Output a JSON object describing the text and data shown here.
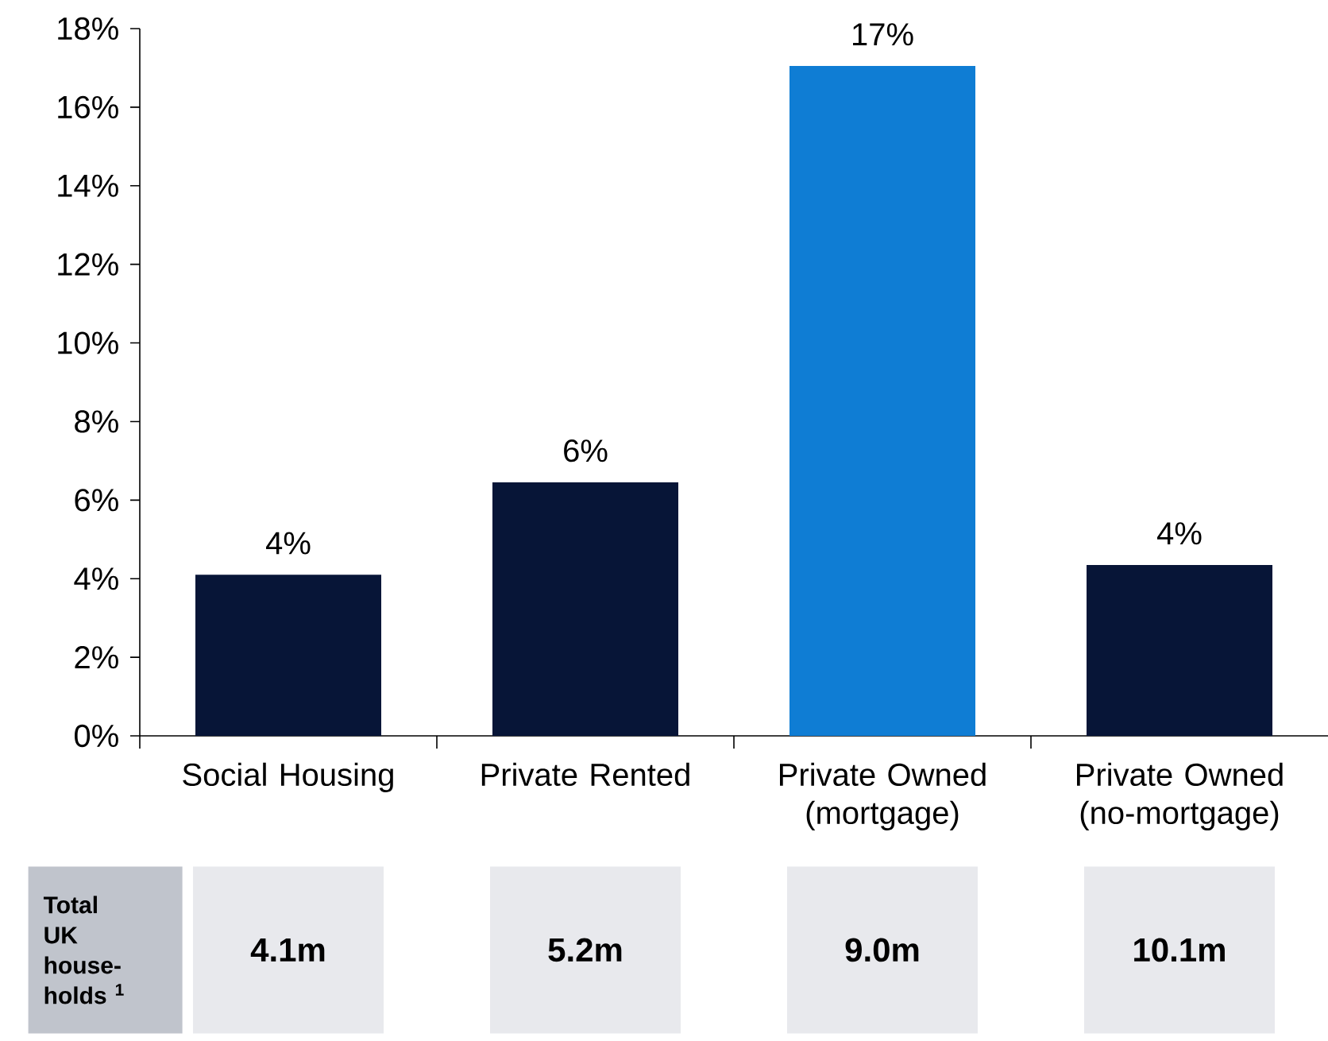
{
  "chart_data": {
    "type": "bar",
    "categories": [
      "Social Housing",
      "Private Rented",
      "Private Owned (mortgage)",
      "Private Owned (no-mortgage)"
    ],
    "values": [
      4.1,
      6.45,
      17.05,
      4.35
    ],
    "colors": [
      "#071537",
      "#071537",
      "#0f7dd4",
      "#071537"
    ],
    "value_labels": [
      "4%",
      "6%",
      "17%",
      "4%"
    ],
    "ylim": [
      0,
      18
    ],
    "yticks": [
      {
        "value": 0,
        "label": "0%"
      },
      {
        "value": 2,
        "label": "2%"
      },
      {
        "value": 4,
        "label": "4%"
      },
      {
        "value": 6,
        "label": "6%"
      },
      {
        "value": 8,
        "label": "8%"
      },
      {
        "value": 10,
        "label": "10%"
      },
      {
        "value": 12,
        "label": "12%"
      },
      {
        "value": 14,
        "label": "14%"
      },
      {
        "value": 16,
        "label": "16%"
      },
      {
        "value": 18,
        "label": "18%"
      }
    ],
    "annotations": [
      "Total UK house-holds $^{1}$",
      "4.1m",
      "5.2m",
      "9.0m",
      "10.1m"
    ]
  }
}
